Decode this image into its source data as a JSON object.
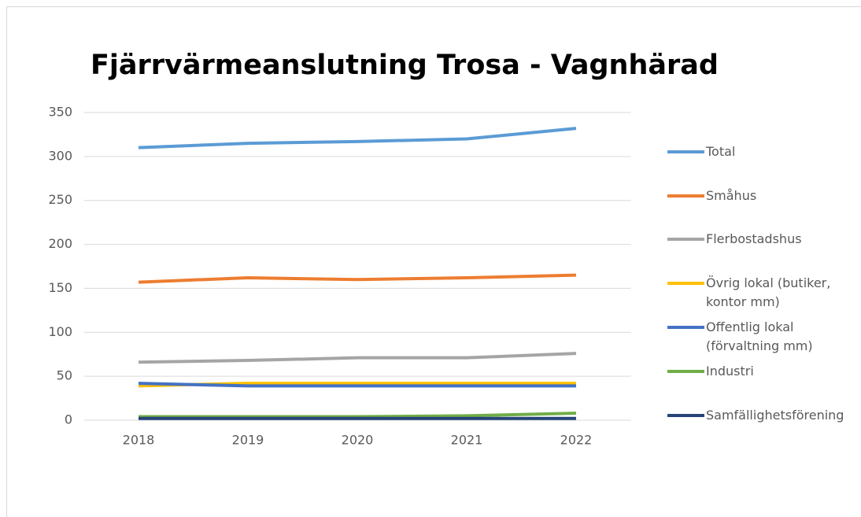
{
  "chart_data": {
    "type": "line",
    "title": "Fjärrvärmeanslutning Trosa - Vagnhärad",
    "categories": [
      "2018",
      "2019",
      "2020",
      "2021",
      "2022"
    ],
    "series": [
      {
        "name": "Total",
        "color": "#5b9bd5",
        "values": [
          310,
          315,
          317,
          320,
          332
        ]
      },
      {
        "name": "Småhus",
        "color": "#ed7d31",
        "values": [
          157,
          162,
          160,
          162,
          165
        ]
      },
      {
        "name": "Flerbostadshus",
        "color": "#a5a5a5",
        "values": [
          66,
          68,
          71,
          71,
          76
        ]
      },
      {
        "name": "Övrig lokal (butiker, kontor mm)",
        "color": "#ffc000",
        "values": [
          39,
          42,
          42,
          42,
          42
        ]
      },
      {
        "name": "Offentlig lokal (förvaltning mm)",
        "color": "#4472c4",
        "values": [
          42,
          39,
          39,
          39,
          39
        ]
      },
      {
        "name": "Industri",
        "color": "#70ad47",
        "values": [
          4,
          4,
          4,
          5,
          8
        ]
      },
      {
        "name": "Samfällighetsförening",
        "color": "#264478",
        "values": [
          2,
          2,
          2,
          2,
          2
        ]
      }
    ],
    "ylim": [
      0,
      350
    ],
    "yticks": [
      0,
      50,
      100,
      150,
      200,
      250,
      300,
      350
    ],
    "grid": true,
    "legend": "right"
  }
}
